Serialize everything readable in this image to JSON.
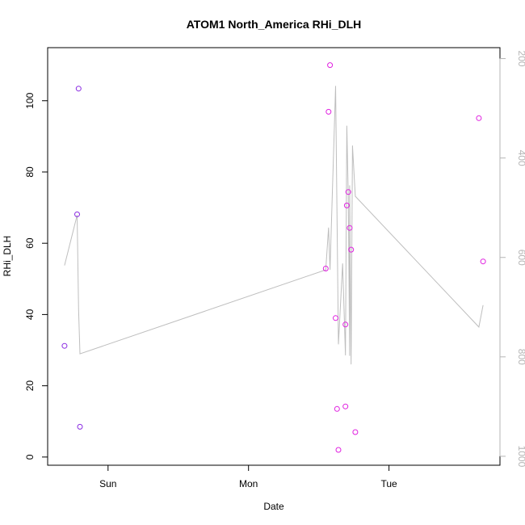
{
  "chart_data": {
    "type": "scatter",
    "title": "ATOM1 North_America RHi_DLH",
    "xlabel": "Date",
    "ylabel": "RHi_DLH",
    "x_ticks": [
      {
        "label": "Sun",
        "value": 1.0
      },
      {
        "label": "Mon",
        "value": 2.0
      },
      {
        "label": "Tue",
        "value": 3.0
      }
    ],
    "xlim": [
      0.57,
      3.79
    ],
    "ylim": [
      -2.3,
      114.9
    ],
    "y_ticks": [
      0,
      20,
      40,
      60,
      80,
      100
    ],
    "y2_ticks": [
      200,
      400,
      600,
      800,
      1000
    ],
    "y2lim": [
      1018,
      178
    ],
    "grid": false,
    "colors": {
      "points_early": "#8a2be2",
      "points_late": "#e020e0",
      "line": "#bebebe",
      "axis": "#000000",
      "right_axis": "#b5b5b5"
    },
    "points": [
      {
        "x": 0.69,
        "y": 31.2,
        "group": "early"
      },
      {
        "x": 0.78,
        "y": 68.1,
        "group": "early"
      },
      {
        "x": 0.79,
        "y": 103.4,
        "group": "early"
      },
      {
        "x": 0.8,
        "y": 8.5,
        "group": "early"
      },
      {
        "x": 2.55,
        "y": 52.9,
        "group": "late"
      },
      {
        "x": 2.57,
        "y": 96.9,
        "group": "late"
      },
      {
        "x": 2.58,
        "y": 110.0,
        "group": "late"
      },
      {
        "x": 2.62,
        "y": 39.0,
        "group": "late"
      },
      {
        "x": 2.63,
        "y": 13.5,
        "group": "late"
      },
      {
        "x": 2.64,
        "y": 2.0,
        "group": "late"
      },
      {
        "x": 2.69,
        "y": 37.2,
        "group": "late"
      },
      {
        "x": 2.69,
        "y": 14.2,
        "group": "late"
      },
      {
        "x": 2.7,
        "y": 70.6,
        "group": "late"
      },
      {
        "x": 2.71,
        "y": 74.4,
        "group": "late"
      },
      {
        "x": 2.72,
        "y": 64.3,
        "group": "late"
      },
      {
        "x": 2.73,
        "y": 58.2,
        "group": "late"
      },
      {
        "x": 2.76,
        "y": 7.0,
        "group": "late"
      },
      {
        "x": 3.64,
        "y": 95.1,
        "group": "late"
      },
      {
        "x": 3.67,
        "y": 54.9,
        "group": "late"
      }
    ],
    "line_series": [
      {
        "x": 0.69,
        "y2": 616
      },
      {
        "x": 0.78,
        "y2": 515
      },
      {
        "x": 0.79,
        "y2": 705
      },
      {
        "x": 0.8,
        "y2": 794
      },
      {
        "x": 2.55,
        "y2": 625
      },
      {
        "x": 2.57,
        "y2": 540
      },
      {
        "x": 2.58,
        "y2": 625
      },
      {
        "x": 2.62,
        "y2": 255
      },
      {
        "x": 2.64,
        "y2": 775
      },
      {
        "x": 2.67,
        "y2": 612
      },
      {
        "x": 2.69,
        "y2": 797
      },
      {
        "x": 2.7,
        "y2": 335
      },
      {
        "x": 2.71,
        "y2": 478
      },
      {
        "x": 2.72,
        "y2": 798
      },
      {
        "x": 2.72,
        "y2": 455
      },
      {
        "x": 2.73,
        "y2": 815
      },
      {
        "x": 2.74,
        "y2": 375
      },
      {
        "x": 2.76,
        "y2": 477
      },
      {
        "x": 3.64,
        "y2": 740
      },
      {
        "x": 3.67,
        "y2": 696
      }
    ]
  }
}
